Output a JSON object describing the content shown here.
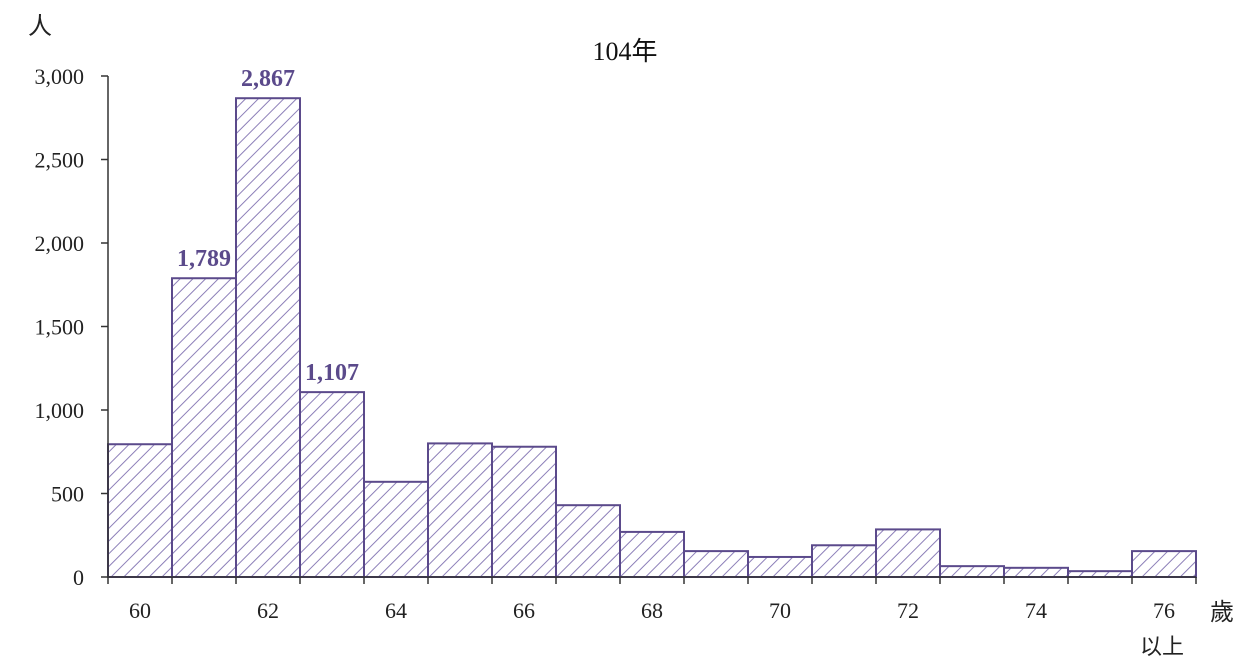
{
  "chart_data": {
    "type": "bar",
    "title": "104年",
    "ylabel": "人",
    "xlabel": "歲",
    "x_last_note": "以上",
    "categories": [
      "60",
      "61",
      "62",
      "63",
      "64",
      "65",
      "66",
      "67",
      "68",
      "69",
      "70",
      "71",
      "72",
      "73",
      "74",
      "75",
      "76"
    ],
    "x_tick_labels": [
      "60",
      "62",
      "64",
      "66",
      "68",
      "70",
      "72",
      "74",
      "76"
    ],
    "values": [
      795,
      1789,
      2867,
      1107,
      570,
      800,
      780,
      430,
      270,
      155,
      120,
      190,
      285,
      65,
      55,
      35,
      155
    ],
    "data_labels": [
      {
        "category": "61",
        "text": "1,789"
      },
      {
        "category": "62",
        "text": "2,867"
      },
      {
        "category": "63",
        "text": "1,107"
      }
    ],
    "ylim": [
      0,
      3000
    ],
    "y_ticks": [
      {
        "value": 0,
        "label": "0"
      },
      {
        "value": 500,
        "label": "500"
      },
      {
        "value": 1000,
        "label": "1,000"
      },
      {
        "value": 1500,
        "label": "1,500"
      },
      {
        "value": 2000,
        "label": "2,000"
      },
      {
        "value": 2500,
        "label": "2,500"
      },
      {
        "value": 3000,
        "label": "3,000"
      }
    ],
    "grid": false,
    "legend": "none",
    "colors": {
      "bar_outline": "#5b4a8b",
      "hatch": "#8c7fb8",
      "data_label": "#5b4a8b",
      "axis": "#333333"
    }
  }
}
